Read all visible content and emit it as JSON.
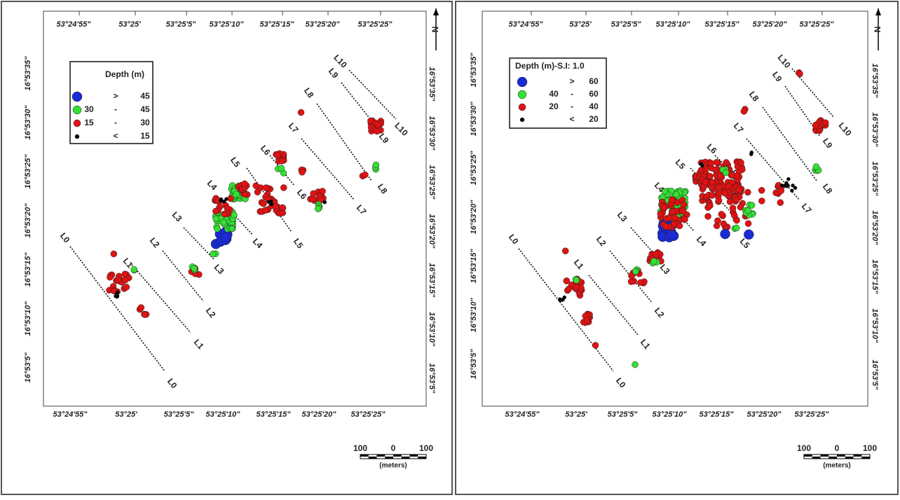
{
  "x_labels": [
    "53°24'55\"",
    "53°25'",
    "53°25'5\"",
    "53°25'10\"",
    "53°25'15\"",
    "53°25'20\"",
    "53°25'25\""
  ],
  "y_labels": [
    "16°53'35\"",
    "16°53'30\"",
    "16°53'25\"",
    "16°53'20\"",
    "16°53'15\"",
    "16°53'10\"",
    "16°53'5\""
  ],
  "survey_lines": [
    "L0",
    "L1",
    "L2",
    "L3",
    "L4",
    "L5",
    "L6",
    "L7",
    "L8",
    "L9",
    "L10"
  ],
  "north": "N",
  "scale_bar": {
    "labels": [
      "100",
      "0",
      "100"
    ],
    "unit": "(meters)"
  },
  "panels": [
    {
      "legend": {
        "title": "Depth  (m)",
        "entries": [
          {
            "parts": [
              ">",
              "45"
            ],
            "color": "#1a2ad6"
          },
          {
            "parts": [
              "30",
              "-",
              "45"
            ],
            "color": "#35e035"
          },
          {
            "parts": [
              "15",
              "-",
              "30"
            ],
            "color": "#e01212"
          },
          {
            "parts": [
              "<",
              "15"
            ],
            "color": "#000000"
          }
        ]
      }
    },
    {
      "legend": {
        "title": "Depth (m)-S.I: 1.0",
        "entries": [
          {
            "parts": [
              ">",
              "60"
            ],
            "color": "#1a2ad6"
          },
          {
            "parts": [
              "40",
              "-",
              "60"
            ],
            "color": "#35e035"
          },
          {
            "parts": [
              "20",
              "-",
              "40"
            ],
            "color": "#e01212"
          },
          {
            "parts": [
              "<",
              "20"
            ],
            "color": "#000000"
          }
        ]
      }
    }
  ]
}
